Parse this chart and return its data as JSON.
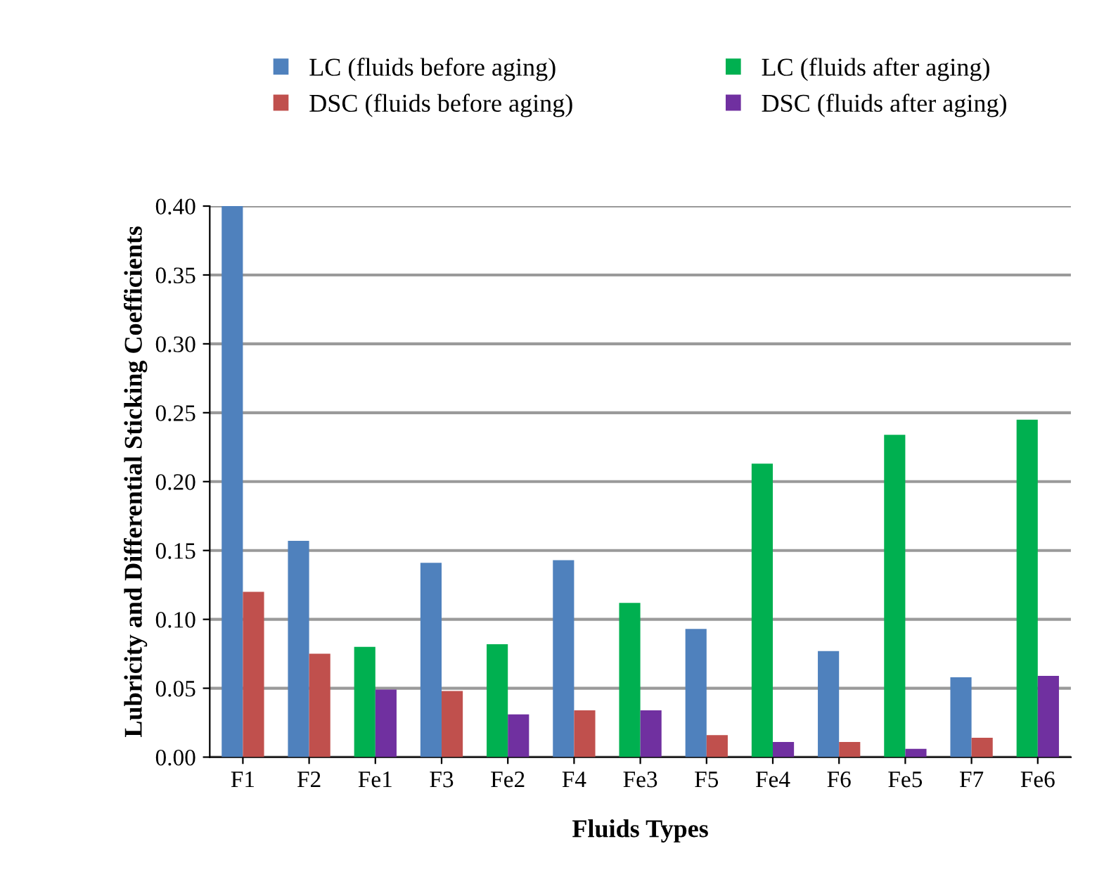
{
  "chart_data": {
    "type": "bar",
    "xlabel": "Fluids Types",
    "ylabel": "Lubricity and Differential Sticking Coefficients",
    "categories": [
      "F1",
      "F2",
      "Fe1",
      "F3",
      "Fe2",
      "F4",
      "Fe3",
      "F5",
      "Fe4",
      "F6",
      "Fe5",
      "F7",
      "Fe6"
    ],
    "series": [
      {
        "name": "LC (fluids before aging)",
        "color": "#4f81bd",
        "values": [
          0.4,
          0.157,
          null,
          0.141,
          null,
          0.143,
          null,
          0.093,
          null,
          0.077,
          null,
          0.058,
          null
        ]
      },
      {
        "name": "DSC (fluids before aging)",
        "color": "#c0504d",
        "values": [
          0.12,
          0.075,
          null,
          0.048,
          null,
          0.034,
          null,
          0.016,
          null,
          0.011,
          null,
          0.014,
          null
        ]
      },
      {
        "name": "LC (fluids after aging)",
        "color": "#00b050",
        "values": [
          null,
          null,
          0.08,
          null,
          0.082,
          null,
          0.112,
          null,
          0.213,
          null,
          0.234,
          null,
          0.245
        ]
      },
      {
        "name": "DSC (fluids after aging)",
        "color": "#7030a0",
        "values": [
          null,
          null,
          0.049,
          null,
          0.031,
          null,
          0.034,
          null,
          0.011,
          null,
          0.006,
          null,
          0.059
        ]
      }
    ],
    "ylim": [
      0,
      0.4
    ],
    "yticks": [
      {
        "value": 0,
        "label": "0.00"
      },
      {
        "value": 0.05,
        "label": "0.05"
      },
      {
        "value": 0.1,
        "label": "0.10"
      },
      {
        "value": 0.15,
        "label": "0.15"
      },
      {
        "value": 0.2,
        "label": "0.20"
      },
      {
        "value": 0.25,
        "label": "0.25"
      },
      {
        "value": 0.3,
        "label": "0.30"
      },
      {
        "value": 0.35,
        "label": "0.35"
      },
      {
        "value": 0.4,
        "label": "0.40"
      }
    ],
    "grid": "y",
    "legend": "top"
  }
}
